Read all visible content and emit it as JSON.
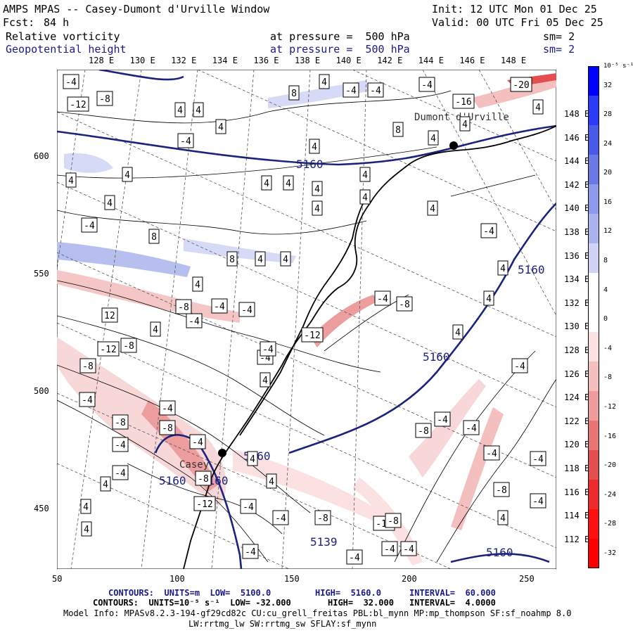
{
  "header": {
    "title": "AMPS MPAS -- Casey-Dumont d'Urville Window",
    "init": "Init: 12 UTC Mon 01 Dec 25",
    "fcst_label": "Fcst:",
    "fcst_value": "84 h",
    "valid": "Valid: 00 UTC Fri 05 Dec 25",
    "field1_name": "Relative vorticity",
    "field1_level": "at pressure =  500 hPa",
    "field1_sm": "sm= 2",
    "field2_name": "Geopotential height",
    "field2_level": "at pressure =  500 hPa",
    "field2_sm": "sm= 2"
  },
  "top_lon_labels": [
    "128 E",
    "130 E",
    "132 E",
    "134 E",
    "136 E",
    "138 E",
    "140 E",
    "142 E",
    "144 E",
    "146 E",
    "148 E"
  ],
  "right_lon_labels": [
    "148 E",
    "146 E",
    "144 E",
    "142 E",
    "140 E",
    "138 E",
    "136 E",
    "134 E",
    "132 E",
    "130 E",
    "128 E",
    "126 E",
    "124 E",
    "122 E",
    "120 E",
    "118 E",
    "116 E",
    "114 E",
    "112 E"
  ],
  "left_y_labels": [
    "600",
    "550",
    "500",
    "450"
  ],
  "bottom_x_labels": [
    "50",
    "100",
    "150",
    "200",
    "250"
  ],
  "stations": [
    "Dumont d'Urville",
    "Casey"
  ],
  "height_labels": [
    "5160",
    "5160",
    "5160",
    "5160",
    "5160",
    "5160",
    "5139",
    "5160"
  ],
  "vort_labels": [
    "-4",
    "-8",
    "-12",
    "4",
    "8",
    "12",
    "-16",
    "-20"
  ],
  "colorbar": {
    "unit": "10⁻⁵ s⁻¹",
    "labels": [
      "32",
      "28",
      "24",
      "20",
      "16",
      "12",
      "8",
      "4",
      "0",
      "-4",
      "-8",
      "-12",
      "-16",
      "-20",
      "-24",
      "-28",
      "-32"
    ],
    "colors": [
      "#0000ff",
      "#2a3cf5",
      "#4a5ae8",
      "#6a79e6",
      "#8d99ea",
      "#aab3ee",
      "#cfd4f6",
      "#ffffff",
      "#ffffff",
      "#fbe1e1",
      "#f4bfbf",
      "#ee9b9b",
      "#e87474",
      "#e44e4e",
      "#ee2a2a",
      "#ff1010",
      "#ff0000"
    ]
  },
  "footer": {
    "line1_a": "CONTOURS:  UNITS=m  LOW=  5100.0",
    "line1_b": "HIGH=  5160.0",
    "line1_c": "INTERVAL=  60.000",
    "line2_a": "CONTOURS:  UNITS=10⁻⁵ s⁻¹  LOW= -32.000",
    "line2_b": "HIGH=  32.000",
    "line2_c": "INTERVAL=  4.0000",
    "line3": "Model Info: MPASv8.2.3-194-gf29cd82c CU:cu_grell_freitas PBL:bl_mynn MP:mp_thompson SF:sf_noahmp 8.0",
    "line4": "LW:rrtmg_lw SW:rrtmg_sw SFLAY:sf_mynn"
  }
}
